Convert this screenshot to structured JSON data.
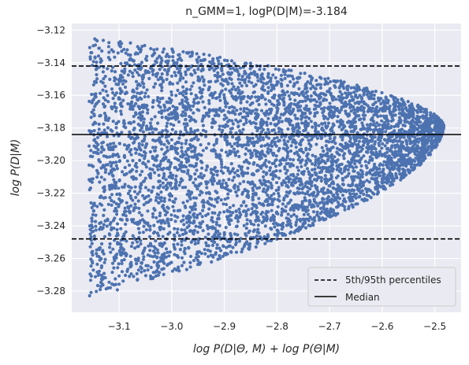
{
  "chart_data": {
    "type": "scatter",
    "title": "n_GMM=1, logP(D|M)=-3.184",
    "xlabel": "log P(D|Θ, M) + log P(Θ|M)",
    "ylabel": "log P(D|M)",
    "xlim": [
      -3.19,
      -2.45
    ],
    "ylim": [
      -3.293,
      -3.116
    ],
    "xticks": [
      -3.1,
      -3.0,
      -2.9,
      -2.8,
      -2.7,
      -2.6,
      -2.5
    ],
    "xtick_labels": [
      "−3.1",
      "−3.0",
      "−2.9",
      "−2.8",
      "−2.7",
      "−2.6",
      "−2.5"
    ],
    "yticks": [
      -3.28,
      -3.26,
      -3.24,
      -3.22,
      -3.2,
      -3.18,
      -3.16,
      -3.14,
      -3.12
    ],
    "ytick_labels": [
      "−3.28",
      "−3.26",
      "−3.24",
      "−3.22",
      "−3.20",
      "−3.18",
      "−3.16",
      "−3.14",
      "−3.12"
    ],
    "grid": true,
    "background": "#eaeaf2",
    "point_color": "#4c72b0",
    "scatter_region": {
      "x_min": -3.157,
      "x_max": -2.483,
      "y_upper_at_x_min": -3.124,
      "y_lower_at_x_min": -3.284,
      "y_apex": -3.179,
      "point_count": 5000
    },
    "hlines": [
      {
        "name": "5th/95th percentiles",
        "y": -3.142,
        "style": "dashed",
        "color": "#000000"
      },
      {
        "name": "Median",
        "y": -3.184,
        "style": "solid",
        "color": "#000000"
      },
      {
        "name": "5th/95th percentiles",
        "y": -3.248,
        "style": "dashed",
        "color": "#000000"
      }
    ],
    "legend": {
      "location": "lower right",
      "entries": [
        {
          "label": "5th/95th percentiles",
          "style": "dashed"
        },
        {
          "label": "Median",
          "style": "solid"
        }
      ]
    }
  }
}
